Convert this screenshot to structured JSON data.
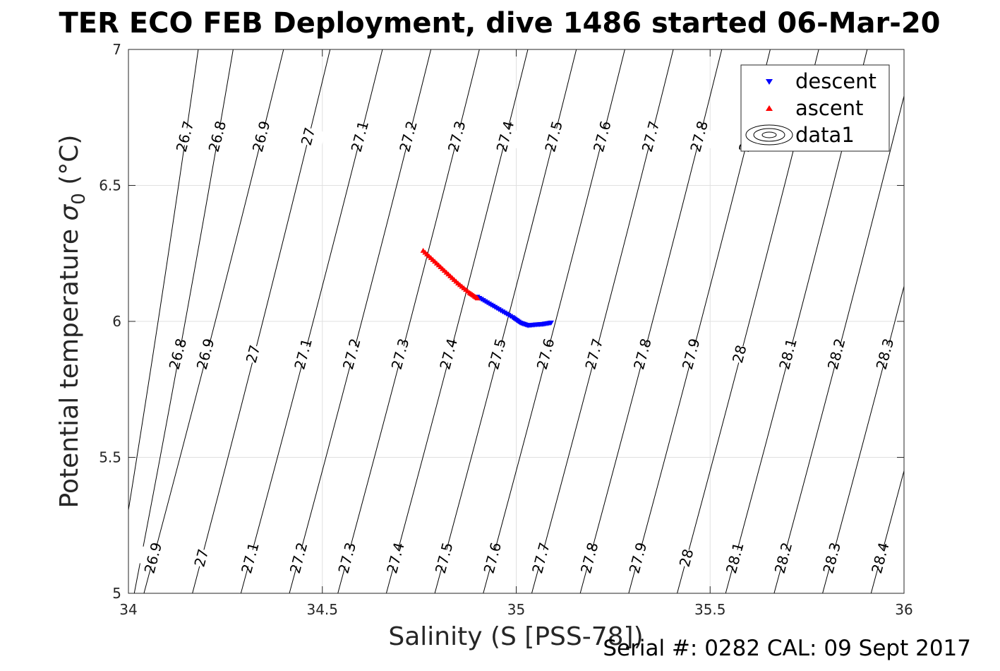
{
  "title": "TER ECO FEB Deployment, dive 1486 started 06-Mar-20",
  "footer": "Serial #: 0282  CAL: 09 Sept 2017",
  "chart_data": {
    "type": "scatter",
    "xlabel": "Salinity (S [PSS-78])",
    "ylabel_main": "Potential temperature ",
    "ylabel_sym": "σ",
    "ylabel_sub": "0",
    "ylabel_unit": " (°C)",
    "xlim": [
      34,
      36
    ],
    "ylim": [
      5,
      7
    ],
    "x_ticks": [
      34,
      34.5,
      35,
      35.5,
      36
    ],
    "x_tick_labels": [
      "34",
      "34.5",
      "35",
      "35.5",
      "36"
    ],
    "y_ticks": [
      5,
      5.5,
      6,
      6.5,
      7
    ],
    "y_tick_labels": [
      "5",
      "5.5",
      "6",
      "6.5",
      "7"
    ],
    "grid": true,
    "legend_position": "top-right",
    "legend": [
      {
        "label": "descent",
        "color": "#0000ff",
        "marker": "triangle-down"
      },
      {
        "label": "ascent",
        "color": "#ff0000",
        "marker": "triangle-up"
      },
      {
        "label": "data1",
        "color": "#000000",
        "marker": "contour"
      }
    ],
    "series": [
      {
        "name": "descent",
        "color": "#0000ff",
        "x": [
          34.9,
          34.93,
          34.96,
          34.99,
          35.01,
          35.03,
          35.05,
          35.07,
          35.09
        ],
        "y": [
          6.09,
          6.065,
          6.04,
          6.015,
          5.995,
          5.985,
          5.988,
          5.99,
          5.995
        ]
      },
      {
        "name": "ascent",
        "color": "#ff0000",
        "x": [
          34.76,
          34.79,
          34.82,
          34.85,
          34.88,
          34.9
        ],
        "y": [
          6.26,
          6.22,
          6.18,
          6.14,
          6.105,
          6.085
        ]
      }
    ],
    "contour_lines": [
      {
        "label": "26.7",
        "x_bottom": 33.965,
        "x_top": 34.18
      },
      {
        "label": "26.8",
        "x_bottom": 34.015,
        "x_top": 34.27
      },
      {
        "label": "26.9",
        "x_bottom": 34.04,
        "x_top": 34.4
      },
      {
        "label": "27",
        "x_bottom": 34.165,
        "x_top": 34.52
      },
      {
        "label": "27.1",
        "x_bottom": 34.29,
        "x_top": 34.655
      },
      {
        "label": "27.2",
        "x_bottom": 34.415,
        "x_top": 34.78
      },
      {
        "label": "27.3",
        "x_bottom": 34.54,
        "x_top": 34.905
      },
      {
        "label": "27.4",
        "x_bottom": 34.665,
        "x_top": 35.03
      },
      {
        "label": "27.5",
        "x_bottom": 34.79,
        "x_top": 35.155
      },
      {
        "label": "27.6",
        "x_bottom": 34.915,
        "x_top": 35.28
      },
      {
        "label": "27.7",
        "x_bottom": 35.04,
        "x_top": 35.405
      },
      {
        "label": "27.8",
        "x_bottom": 35.165,
        "x_top": 35.53
      },
      {
        "label": "27.9",
        "x_bottom": 35.29,
        "x_top": 35.655
      },
      {
        "label": "28",
        "x_bottom": 35.415,
        "x_top": 35.78
      },
      {
        "label": "28.1",
        "x_bottom": 35.54,
        "x_top": 35.905
      },
      {
        "label": "28.2",
        "x_bottom": 35.665,
        "x_top": 36.03
      },
      {
        "label": "28.3",
        "x_bottom": 35.79,
        "x_top": 36.155
      },
      {
        "label": "28.4",
        "x_bottom": 35.915,
        "x_top": 36.28
      }
    ],
    "contour_labels_top": [
      "26.7",
      "26.8",
      "26.9",
      "27",
      "27.1",
      "27.2",
      "27.3",
      "27.4",
      "27.5",
      "27.6",
      "27.7",
      "27.8",
      "27.9"
    ],
    "contour_labels_mid": [
      "26.8",
      "26.9",
      "27",
      "27.1",
      "27.2",
      "27.3",
      "27.4",
      "27.5",
      "27.6",
      "27.7",
      "27.8",
      "27.9",
      "28",
      "28.1",
      "28.2",
      "28.3"
    ],
    "contour_labels_bottom": [
      "26.9",
      "27",
      "27.1",
      "27.2",
      "27.3",
      "27.4",
      "27.5",
      "27.6",
      "27.7",
      "27.8",
      "27.9",
      "28",
      "28.1",
      "28.2",
      "28.3",
      "28.4"
    ]
  }
}
